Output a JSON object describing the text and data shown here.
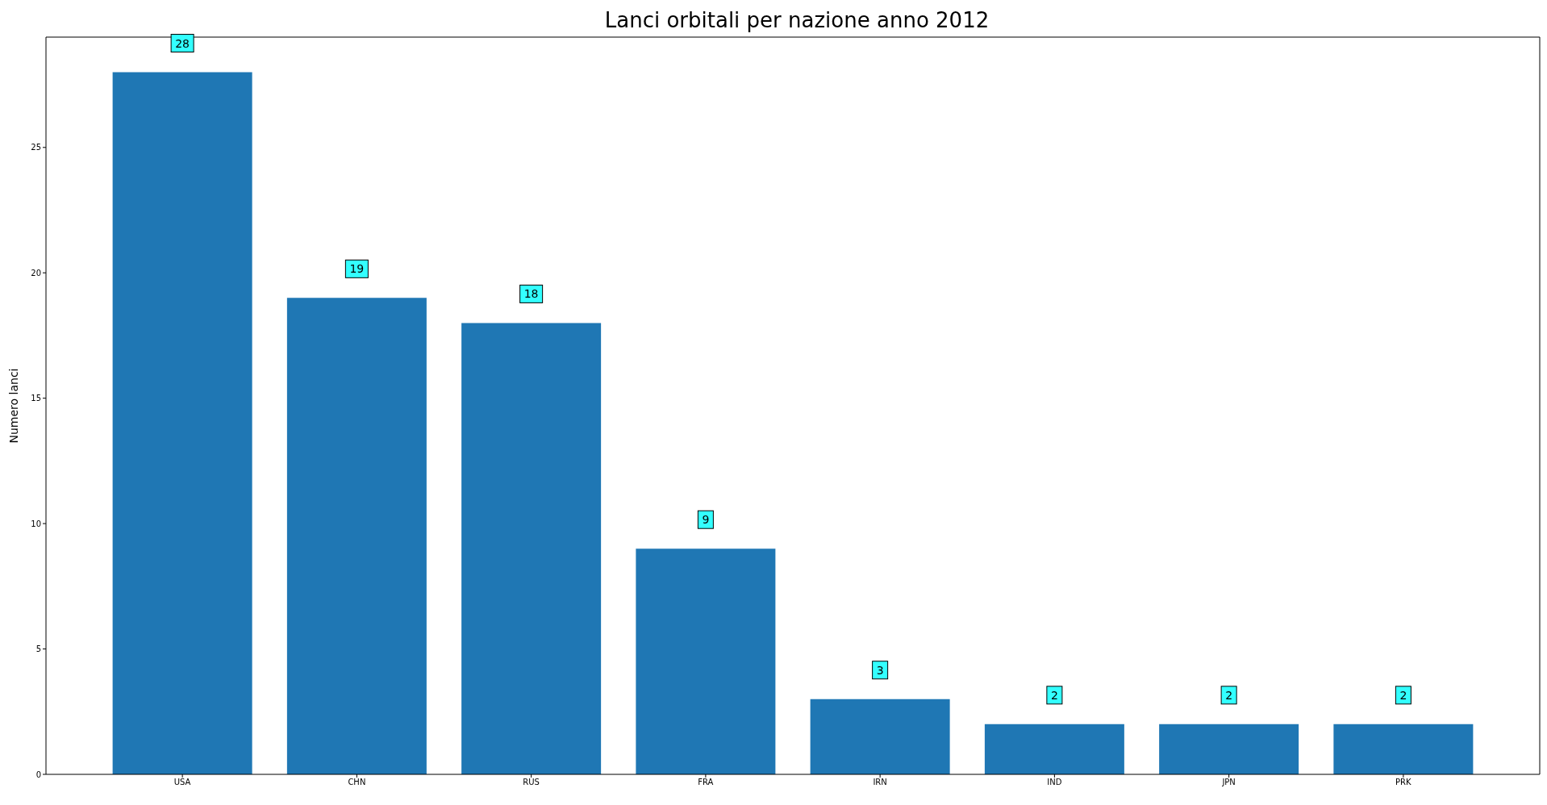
{
  "chart_data": {
    "type": "bar",
    "title": "Lanci orbitali per nazione anno 2012",
    "ylabel": "Numero lanci",
    "categories": [
      "USA",
      "CHN",
      "RUS",
      "FRA",
      "IRN",
      "IND",
      "JPN",
      "PRK"
    ],
    "values": [
      28,
      19,
      18,
      9,
      3,
      2,
      2,
      2
    ],
    "color": "#1f77b4",
    "ylim": [
      0,
      29.4
    ],
    "yticks": [
      0,
      5,
      10,
      15,
      20,
      25
    ],
    "grid": false,
    "legend": false,
    "data_labels": true
  }
}
